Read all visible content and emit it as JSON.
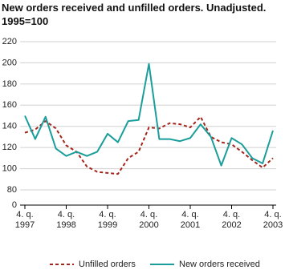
{
  "chart_data": {
    "type": "line",
    "title": "New orders received and unfilled orders. Unadjusted.",
    "subtitle": "1995=100",
    "categories": [
      "4. q.\n1997",
      null,
      null,
      null,
      "4. q.\n1998",
      null,
      null,
      null,
      "4. q.\n1999",
      null,
      null,
      null,
      "4. q.\n2000",
      null,
      null,
      null,
      "4. q.\n2001",
      null,
      null,
      null,
      "4. q.\n2002",
      null,
      null,
      null,
      "4. q.\n2003"
    ],
    "series": [
      {
        "name": "Unfilled orders",
        "color": "#a3261c",
        "dashed": true,
        "values": [
          134,
          137,
          145,
          138,
          122,
          116,
          102,
          97,
          96,
          95,
          110,
          116,
          139,
          138,
          143,
          142,
          139,
          149,
          130,
          125,
          123,
          116,
          108,
          101,
          110
        ]
      },
      {
        "name": "New orders received",
        "color": "#1a9e9b",
        "dashed": false,
        "values": [
          150,
          128,
          149,
          119,
          112,
          116,
          112,
          116,
          133,
          125,
          145,
          146,
          199,
          128,
          128,
          126,
          129,
          142,
          130,
          103,
          129,
          123,
          110,
          105,
          136
        ]
      }
    ],
    "ylim": [
      0,
      220
    ],
    "axis_break": [
      0,
      80
    ],
    "yticks": [
      0,
      80,
      100,
      120,
      140,
      160,
      180,
      200,
      220
    ],
    "grid": true,
    "legend": "bottom"
  }
}
